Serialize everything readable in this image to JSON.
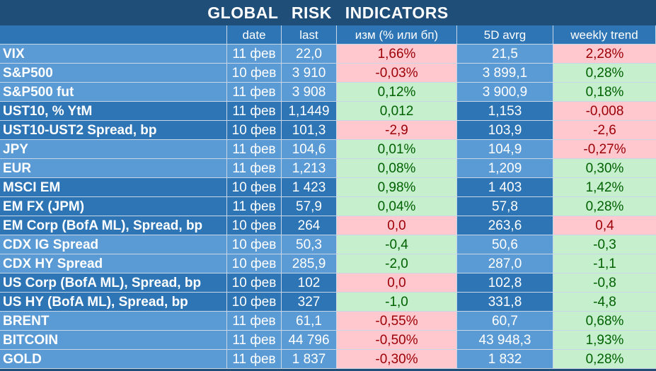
{
  "title": "GLOBAL   RISK   INDICATORS",
  "columns": [
    "",
    "date",
    "last",
    "изм (% или бп)",
    "5D avrg",
    "weekly trend"
  ],
  "groups": [
    {
      "shade": "light",
      "rows": [
        {
          "name": "VIX",
          "date": "11 фев",
          "last": "22,0",
          "change": "1,66%",
          "change_sign": "neg",
          "avg5d": "21,5",
          "weekly": "2,28%",
          "weekly_sign": "neg"
        },
        {
          "name": "S&P500",
          "date": "10 фев",
          "last": "3 910",
          "change": "-0,03%",
          "change_sign": "neg",
          "avg5d": "3 899,1",
          "weekly": "0,28%",
          "weekly_sign": "pos"
        },
        {
          "name": "S&P500 fut",
          "date": "11 фев",
          "last": "3 908",
          "change": "0,12%",
          "change_sign": "pos",
          "avg5d": "3 900,9",
          "weekly": "0,18%",
          "weekly_sign": "pos"
        }
      ]
    },
    {
      "shade": "dark",
      "rows": [
        {
          "name": "UST10, % YtM",
          "date": "11 фев",
          "last": "1,1449",
          "change": "0,012",
          "change_sign": "pos",
          "avg5d": "1,153",
          "weekly": "-0,008",
          "weekly_sign": "neg"
        },
        {
          "name": "UST10-UST2 Spread, bp",
          "date": "10 фев",
          "last": "101,3",
          "change": "-2,9",
          "change_sign": "neg",
          "avg5d": "103,9",
          "weekly": "-2,6",
          "weekly_sign": "neg"
        }
      ]
    },
    {
      "shade": "light",
      "rows": [
        {
          "name": "JPY",
          "date": "11 фев",
          "last": "104,6",
          "change": "0,01%",
          "change_sign": "pos",
          "avg5d": "104,9",
          "weekly": "-0,27%",
          "weekly_sign": "neg"
        },
        {
          "name": "EUR",
          "date": "11 фев",
          "last": "1,213",
          "change": "0,08%",
          "change_sign": "pos",
          "avg5d": "1,209",
          "weekly": "0,30%",
          "weekly_sign": "pos"
        }
      ]
    },
    {
      "shade": "dark",
      "rows": [
        {
          "name": "MSCI EM",
          "date": "10 фев",
          "last": "1 423",
          "change": "0,98%",
          "change_sign": "pos",
          "avg5d": "1 403",
          "weekly": "1,42%",
          "weekly_sign": "pos"
        },
        {
          "name": "EM FX (JPM)",
          "date": "11 фев",
          "last": "57,9",
          "change": "0,04%",
          "change_sign": "pos",
          "avg5d": "57,8",
          "weekly": "0,28%",
          "weekly_sign": "pos"
        },
        {
          "name": "EM Corp (BofA ML), Spread, bp",
          "date": "10 фев",
          "last": "264",
          "change": "0,0",
          "change_sign": "neg",
          "avg5d": "263,6",
          "weekly": "0,4",
          "weekly_sign": "neg"
        }
      ]
    },
    {
      "shade": "light",
      "rows": [
        {
          "name": "CDX IG Spread",
          "date": "10 фев",
          "last": "50,3",
          "change": "-0,4",
          "change_sign": "pos",
          "avg5d": "50,6",
          "weekly": "-0,3",
          "weekly_sign": "pos"
        },
        {
          "name": "CDX HY Spread",
          "date": "10 фев",
          "last": "285,9",
          "change": "-2,0",
          "change_sign": "pos",
          "avg5d": "287,0",
          "weekly": "-1,1",
          "weekly_sign": "pos"
        }
      ]
    },
    {
      "shade": "dark",
      "rows": [
        {
          "name": "US Corp (BofA ML), Spread, bp",
          "date": "10 фев",
          "last": "102",
          "change": "0,0",
          "change_sign": "neg",
          "avg5d": "102,8",
          "weekly": "-0,8",
          "weekly_sign": "pos"
        },
        {
          "name": "US HY (BofA ML), Spread, bp",
          "date": "10 фев",
          "last": "327",
          "change": "-1,0",
          "change_sign": "pos",
          "avg5d": "331,8",
          "weekly": "-4,8",
          "weekly_sign": "pos"
        }
      ]
    },
    {
      "shade": "light",
      "rows": [
        {
          "name": "BRENT",
          "date": "11 фев",
          "last": "61,1",
          "change": "-0,55%",
          "change_sign": "neg",
          "avg5d": "60,7",
          "weekly": "0,68%",
          "weekly_sign": "pos"
        },
        {
          "name": "BITCOIN",
          "date": "11 фев",
          "last": "44 796",
          "change": "-0,50%",
          "change_sign": "neg",
          "avg5d": "43 948,3",
          "weekly": "1,93%",
          "weekly_sign": "pos"
        },
        {
          "name": "GOLD",
          "date": "11 фев",
          "last": "1 837",
          "change": "-0,30%",
          "change_sign": "neg",
          "avg5d": "1 832",
          "weekly": "0,28%",
          "weekly_sign": "pos"
        }
      ]
    }
  ]
}
